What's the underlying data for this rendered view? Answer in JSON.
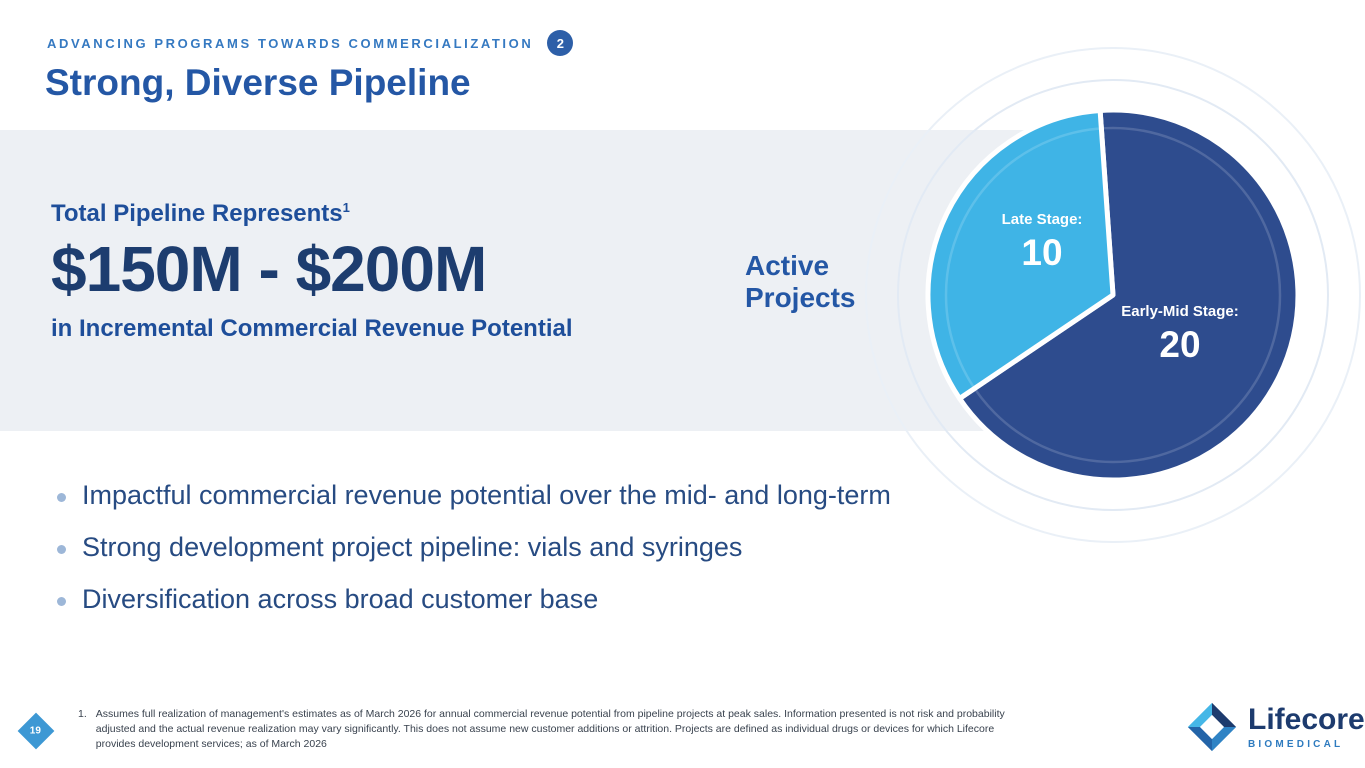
{
  "header": {
    "kicker": "ADVANCING PROGRAMS TOWARDS COMMERCIALIZATION",
    "badge": "2",
    "title": "Strong, Diverse Pipeline"
  },
  "highlight": {
    "lead": "Total Pipeline Represents",
    "lead_sup": "1",
    "amount": "$150M - $200M",
    "subline": "in Incremental Commercial Revenue Potential"
  },
  "pie_caption": "Active\nProjects",
  "chart_data": {
    "type": "pie",
    "title": "Active Projects",
    "total": 30,
    "start_angle_deg": -4,
    "legend_position": "labels-on-slices",
    "slices": [
      {
        "label": "Early-Mid Stage:",
        "value": 20,
        "color": "#2e4c8e"
      },
      {
        "label": "Late Stage:",
        "value": 10,
        "color": "#3fb4e6"
      }
    ]
  },
  "bullets": [
    "Impactful commercial revenue potential over the mid- and long-term",
    "Strong development project pipeline: vials and syringes",
    "Diversification across broad customer base"
  ],
  "footer": {
    "page_number": "19",
    "footnote_number": "1.",
    "footnote": "Assumes full realization of management's estimates as of March 2026 for annual commercial revenue potential from pipeline projects at peak sales. Information presented is not risk and probability adjusted and the actual revenue realization may vary significantly. This does not assume new customer additions or attrition.  Projects are defined as individual drugs or devices for which Lifecore provides development services; as of March 2026"
  },
  "logo": {
    "name": "Lifecore",
    "registered": "®",
    "tagline": "BIOMEDICAL"
  },
  "colors": {
    "accent_blue": "#2457a5",
    "navy": "#1d3d6f",
    "light_blue": "#3fb4e6",
    "band_gray": "#edf0f4"
  }
}
